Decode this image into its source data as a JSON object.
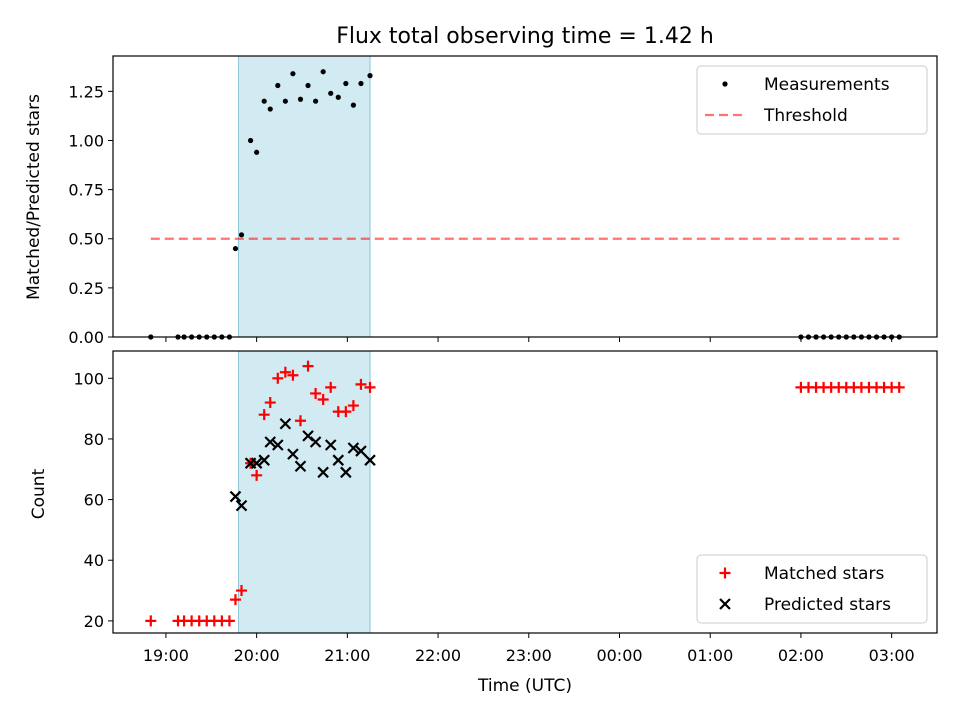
{
  "title": "Flux total observing time = 1.42 h",
  "colors": {
    "background": "#ffffff",
    "span_fill": "#add8e6",
    "measurement": "#000000",
    "threshold": "#ff0000",
    "matched": "#ff0000",
    "predicted": "#000000"
  },
  "chart_data": [
    {
      "type": "scatter",
      "title": "Flux total observing time = 1.42 h",
      "xlabel": "",
      "ylabel": "Matched/Predicted stars",
      "xlim": [
        "18:25",
        "03:30"
      ],
      "ylim": [
        0,
        1.43
      ],
      "yticks": [
        "0.00",
        "0.25",
        "0.50",
        "0.75",
        "1.00",
        "1.25"
      ],
      "grid": false,
      "legend": "top-right",
      "highlight_span": [
        "19:48",
        "21:15"
      ],
      "series": [
        {
          "name": "Measurements",
          "marker": "dot",
          "color": "#000000",
          "points": [
            [
              "18:50",
              0
            ],
            [
              "19:08",
              0
            ],
            [
              "19:12",
              0
            ],
            [
              "19:17",
              0
            ],
            [
              "19:22",
              0
            ],
            [
              "19:27",
              0
            ],
            [
              "19:32",
              0
            ],
            [
              "19:37",
              0
            ],
            [
              "19:42",
              0
            ],
            [
              "19:46",
              0.45
            ],
            [
              "19:50",
              0.52
            ],
            [
              "19:56",
              1.0
            ],
            [
              "20:00",
              0.94
            ],
            [
              "20:05",
              1.2
            ],
            [
              "20:09",
              1.16
            ],
            [
              "20:14",
              1.28
            ],
            [
              "20:19",
              1.2
            ],
            [
              "20:24",
              1.34
            ],
            [
              "20:29",
              1.21
            ],
            [
              "20:34",
              1.28
            ],
            [
              "20:39",
              1.2
            ],
            [
              "20:44",
              1.35
            ],
            [
              "20:49",
              1.24
            ],
            [
              "20:54",
              1.22
            ],
            [
              "20:59",
              1.29
            ],
            [
              "21:04",
              1.18
            ],
            [
              "21:09",
              1.29
            ],
            [
              "21:15",
              1.33
            ],
            [
              "02:00",
              0
            ],
            [
              "02:05",
              0
            ],
            [
              "02:10",
              0
            ],
            [
              "02:15",
              0
            ],
            [
              "02:20",
              0
            ],
            [
              "02:25",
              0
            ],
            [
              "02:30",
              0
            ],
            [
              "02:35",
              0
            ],
            [
              "02:40",
              0
            ],
            [
              "02:45",
              0
            ],
            [
              "02:50",
              0
            ],
            [
              "02:55",
              0
            ],
            [
              "03:00",
              0
            ],
            [
              "03:05",
              0
            ]
          ]
        },
        {
          "name": "Threshold",
          "marker": "dashed-line",
          "color": "#ff0000",
          "points": [
            [
              "18:50",
              0.5
            ],
            [
              "03:05",
              0.5
            ]
          ]
        }
      ]
    },
    {
      "type": "scatter",
      "xlabel": "Time (UTC)",
      "ylabel": "Count",
      "xlim": [
        "18:25",
        "03:30"
      ],
      "ylim": [
        16,
        109
      ],
      "xticks": [
        "19:00",
        "20:00",
        "21:00",
        "22:00",
        "23:00",
        "00:00",
        "01:00",
        "02:00",
        "03:00"
      ],
      "yticks": [
        "20",
        "40",
        "60",
        "80",
        "100"
      ],
      "grid": false,
      "legend": "bottom-right",
      "highlight_span": [
        "19:48",
        "21:15"
      ],
      "series": [
        {
          "name": "Matched stars",
          "marker": "plus",
          "color": "#ff0000",
          "points": [
            [
              "18:50",
              20
            ],
            [
              "19:08",
              20
            ],
            [
              "19:12",
              20
            ],
            [
              "19:17",
              20
            ],
            [
              "19:22",
              20
            ],
            [
              "19:27",
              20
            ],
            [
              "19:32",
              20
            ],
            [
              "19:37",
              20
            ],
            [
              "19:42",
              20
            ],
            [
              "19:46",
              27
            ],
            [
              "19:50",
              30
            ],
            [
              "19:56",
              72
            ],
            [
              "20:00",
              68
            ],
            [
              "20:05",
              88
            ],
            [
              "20:09",
              92
            ],
            [
              "20:14",
              100
            ],
            [
              "20:19",
              102
            ],
            [
              "20:24",
              101
            ],
            [
              "20:29",
              86
            ],
            [
              "20:34",
              104
            ],
            [
              "20:39",
              95
            ],
            [
              "20:44",
              93
            ],
            [
              "20:49",
              97
            ],
            [
              "20:54",
              89
            ],
            [
              "20:59",
              89
            ],
            [
              "21:04",
              91
            ],
            [
              "21:09",
              98
            ],
            [
              "21:15",
              97
            ],
            [
              "02:00",
              97
            ],
            [
              "02:05",
              97
            ],
            [
              "02:10",
              97
            ],
            [
              "02:15",
              97
            ],
            [
              "02:20",
              97
            ],
            [
              "02:25",
              97
            ],
            [
              "02:30",
              97
            ],
            [
              "02:35",
              97
            ],
            [
              "02:40",
              97
            ],
            [
              "02:45",
              97
            ],
            [
              "02:50",
              97
            ],
            [
              "02:55",
              97
            ],
            [
              "03:00",
              97
            ],
            [
              "03:05",
              97
            ]
          ]
        },
        {
          "name": "Predicted stars",
          "marker": "x",
          "color": "#000000",
          "points": [
            [
              "19:46",
              61
            ],
            [
              "19:50",
              58
            ],
            [
              "19:56",
              72
            ],
            [
              "20:00",
              72
            ],
            [
              "20:05",
              73
            ],
            [
              "20:09",
              79
            ],
            [
              "20:14",
              78
            ],
            [
              "20:19",
              85
            ],
            [
              "20:24",
              75
            ],
            [
              "20:29",
              71
            ],
            [
              "20:34",
              81
            ],
            [
              "20:39",
              79
            ],
            [
              "20:44",
              69
            ],
            [
              "20:49",
              78
            ],
            [
              "20:54",
              73
            ],
            [
              "20:59",
              69
            ],
            [
              "21:04",
              77
            ],
            [
              "21:09",
              76
            ],
            [
              "21:15",
              73
            ]
          ]
        }
      ]
    }
  ]
}
